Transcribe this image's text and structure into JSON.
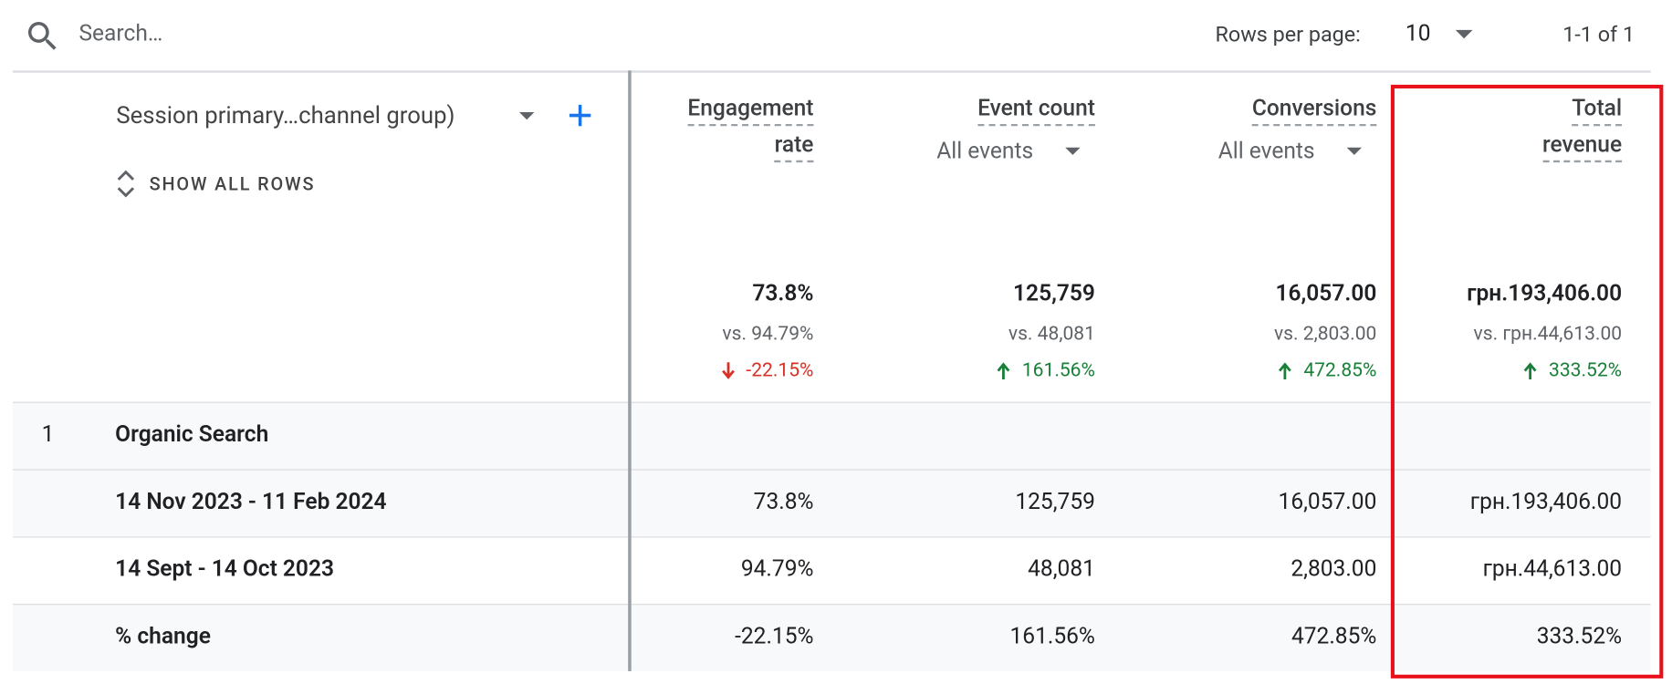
{
  "toolbar": {
    "search_placeholder": "Search…",
    "rows_per_page_label": "Rows per page:",
    "rows_per_page": "10",
    "pagination": "1-1 of 1"
  },
  "table": {
    "dimension": "Session primary…channel group)",
    "show_all_rows": "SHOW ALL ROWS",
    "columns": [
      {
        "title_lines": [
          "Engagement",
          "rate"
        ]
      },
      {
        "title_lines": [
          "Event count"
        ],
        "filter": "All events"
      },
      {
        "title_lines": [
          "Conversions"
        ],
        "filter": "All events"
      },
      {
        "title_lines": [
          "Total",
          "revenue"
        ]
      }
    ],
    "totals": [
      {
        "value": "73.8%",
        "comparison": "vs. 94.79%",
        "change": "-22.15%"
      },
      {
        "value": "125,759",
        "comparison": "vs. 48,081",
        "change": "161.56%"
      },
      {
        "value": "16,057.00",
        "comparison": "vs. 2,803.00",
        "change": "472.85%"
      },
      {
        "value": "грн.193,406.00",
        "comparison": "vs. грн.44,613.00",
        "change": "333.52%"
      }
    ],
    "group": {
      "index": "1",
      "label": "Organic Search"
    },
    "rows": [
      {
        "label": "14 Nov 2023 - 11 Feb 2024",
        "cells": [
          "73.8%",
          "125,759",
          "16,057.00",
          "грн.193,406.00"
        ]
      },
      {
        "label": "14 Sept - 14 Oct 2023",
        "cells": [
          "94.79%",
          "48,081",
          "2,803.00",
          "грн.44,613.00"
        ]
      },
      {
        "label": "% change",
        "cells": [
          "-22.15%",
          "161.56%",
          "472.85%",
          "333.52%"
        ]
      }
    ]
  }
}
